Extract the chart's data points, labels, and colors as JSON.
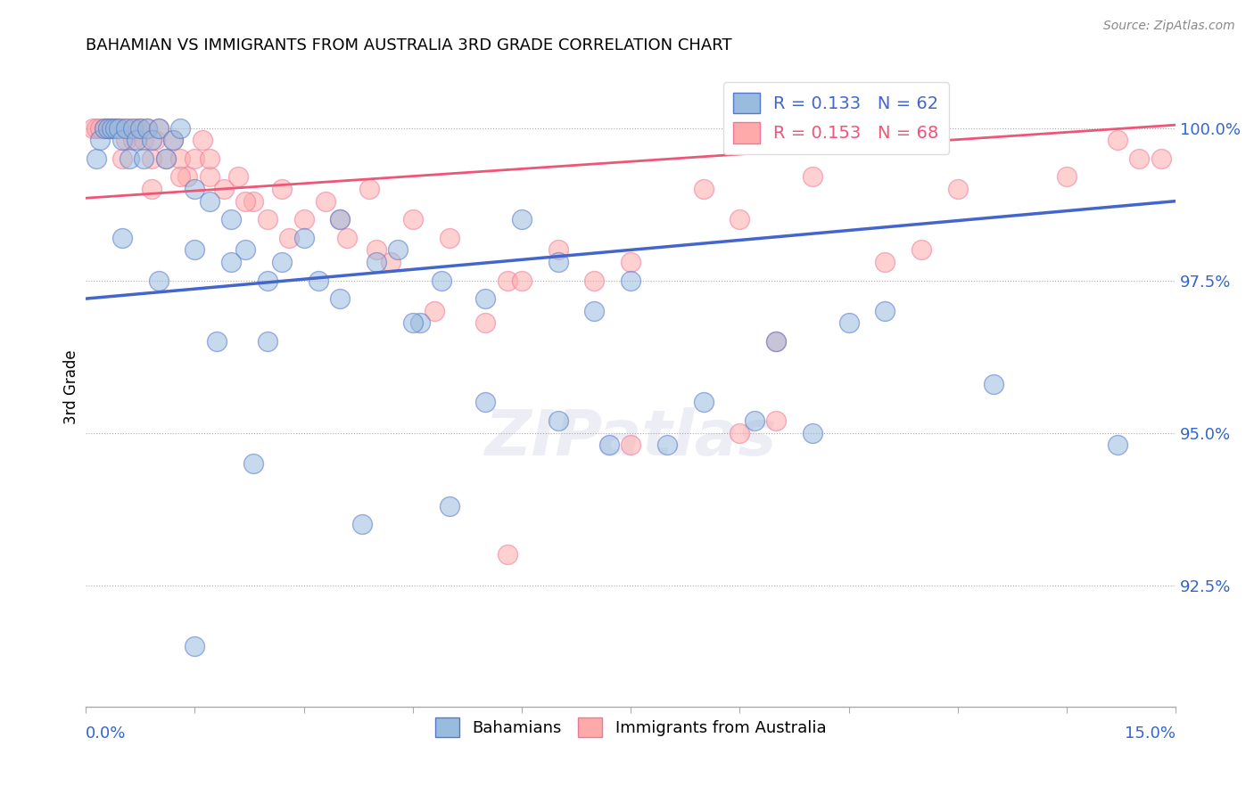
{
  "title": "BAHAMIAN VS IMMIGRANTS FROM AUSTRALIA 3RD GRADE CORRELATION CHART",
  "source": "Source: ZipAtlas.com",
  "ylabel": "3rd Grade",
  "xmin": 0.0,
  "xmax": 15.0,
  "ymin": 90.5,
  "ymax": 101.0,
  "yticks": [
    92.5,
    95.0,
    97.5,
    100.0
  ],
  "ytick_labels": [
    "92.5%",
    "95.0%",
    "97.5%",
    "100.0%"
  ],
  "blue_R": 0.133,
  "blue_N": 62,
  "pink_R": 0.153,
  "pink_N": 68,
  "blue_color": "#99BBDD",
  "pink_color": "#FFAAAA",
  "blue_edge_color": "#5577CC",
  "pink_edge_color": "#EE7799",
  "blue_line_color": "#4466CC",
  "pink_line_color": "#EE5577",
  "legend_label_blue": "Bahamians",
  "legend_label_pink": "Immigrants from Australia",
  "blue_line_x0": 0.0,
  "blue_line_y0": 97.2,
  "blue_line_x1": 15.0,
  "blue_line_y1": 98.8,
  "pink_line_x0": 0.0,
  "pink_line_y0": 98.85,
  "pink_line_x1": 15.0,
  "pink_line_y1": 100.05,
  "blue_scatter_x": [
    0.15,
    0.2,
    0.25,
    0.3,
    0.35,
    0.4,
    0.45,
    0.5,
    0.55,
    0.6,
    0.65,
    0.7,
    0.75,
    0.8,
    0.85,
    0.9,
    1.0,
    1.1,
    1.2,
    1.3,
    1.5,
    1.7,
    2.0,
    2.2,
    2.5,
    2.7,
    3.0,
    3.2,
    3.5,
    4.0,
    4.3,
    4.6,
    4.9,
    5.5,
    6.0,
    6.5,
    7.0,
    7.5,
    8.0,
    9.5,
    10.5,
    11.0,
    12.5,
    14.2,
    0.5,
    1.0,
    1.5,
    2.0,
    2.5,
    3.5,
    4.5,
    5.5,
    6.5,
    7.2,
    8.5,
    9.2,
    10.0,
    1.8,
    2.3,
    3.8,
    5.0,
    1.5
  ],
  "blue_scatter_y": [
    99.5,
    99.8,
    100.0,
    100.0,
    100.0,
    100.0,
    100.0,
    99.8,
    100.0,
    99.5,
    100.0,
    99.8,
    100.0,
    99.5,
    100.0,
    99.8,
    100.0,
    99.5,
    99.8,
    100.0,
    99.0,
    98.8,
    98.5,
    98.0,
    97.5,
    97.8,
    98.2,
    97.5,
    98.5,
    97.8,
    98.0,
    96.8,
    97.5,
    97.2,
    98.5,
    97.8,
    97.0,
    97.5,
    94.8,
    96.5,
    96.8,
    97.0,
    95.8,
    94.8,
    98.2,
    97.5,
    98.0,
    97.8,
    96.5,
    97.2,
    96.8,
    95.5,
    95.2,
    94.8,
    95.5,
    95.2,
    95.0,
    96.5,
    94.5,
    93.5,
    93.8,
    91.5
  ],
  "pink_scatter_x": [
    0.1,
    0.15,
    0.2,
    0.25,
    0.3,
    0.35,
    0.4,
    0.45,
    0.5,
    0.55,
    0.6,
    0.65,
    0.7,
    0.75,
    0.8,
    0.85,
    0.9,
    0.95,
    1.0,
    1.1,
    1.2,
    1.3,
    1.4,
    1.5,
    1.6,
    1.7,
    1.9,
    2.1,
    2.3,
    2.5,
    2.7,
    3.0,
    3.3,
    3.6,
    3.9,
    4.2,
    4.5,
    5.0,
    5.8,
    6.5,
    7.5,
    8.5,
    9.0,
    10.0,
    12.0,
    14.5,
    0.5,
    0.9,
    1.3,
    1.7,
    2.2,
    2.8,
    3.5,
    4.0,
    5.5,
    7.0,
    9.5,
    11.0,
    4.8,
    6.0,
    7.5,
    9.5,
    11.5,
    13.5,
    14.8,
    5.8,
    14.2,
    9.0
  ],
  "pink_scatter_y": [
    100.0,
    100.0,
    100.0,
    100.0,
    100.0,
    100.0,
    100.0,
    100.0,
    100.0,
    99.8,
    100.0,
    99.8,
    100.0,
    100.0,
    99.8,
    100.0,
    99.5,
    99.8,
    100.0,
    99.5,
    99.8,
    99.5,
    99.2,
    99.5,
    99.8,
    99.2,
    99.0,
    99.2,
    98.8,
    98.5,
    99.0,
    98.5,
    98.8,
    98.2,
    99.0,
    97.8,
    98.5,
    98.2,
    97.5,
    98.0,
    97.8,
    99.0,
    98.5,
    99.2,
    99.0,
    99.5,
    99.5,
    99.0,
    99.2,
    99.5,
    98.8,
    98.2,
    98.5,
    98.0,
    96.8,
    97.5,
    96.5,
    97.8,
    97.0,
    97.5,
    94.8,
    95.2,
    98.0,
    99.2,
    99.5,
    93.0,
    99.8,
    95.0
  ]
}
